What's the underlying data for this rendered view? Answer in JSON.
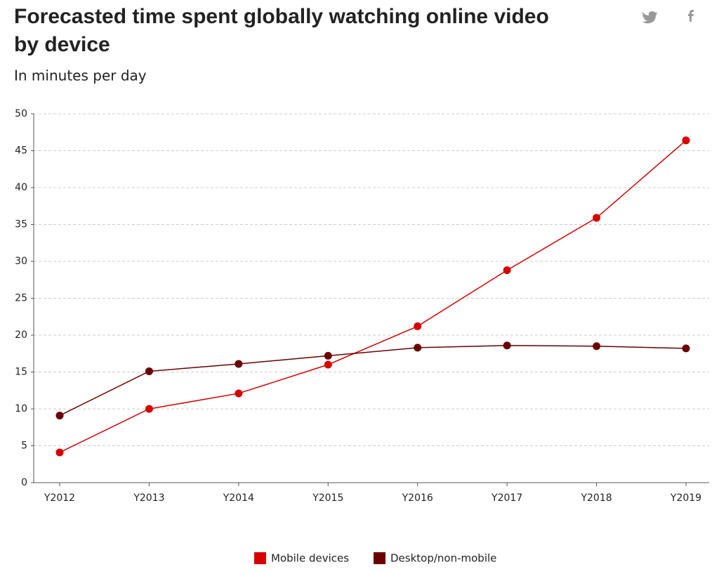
{
  "chart_data": {
    "type": "line",
    "title": "Forecasted time spent globally watching online video by device",
    "subtitle": "In minutes per day",
    "categories": [
      "Y2012",
      "Y2013",
      "Y2014",
      "Y2015",
      "Y2016",
      "Y2017",
      "Y2018",
      "Y2019"
    ],
    "series": [
      {
        "name": "Mobile devices",
        "color": "#d60000",
        "values": [
          4.1,
          10,
          12.1,
          16,
          21.2,
          28.8,
          35.9,
          46.4
        ]
      },
      {
        "name": "Desktop/non-mobile",
        "color": "#6b0000",
        "values": [
          9.1,
          15.1,
          16.1,
          17.2,
          18.3,
          18.6,
          18.5,
          18.2
        ]
      }
    ],
    "ylim": [
      0,
      50
    ],
    "yticks": [
      0,
      5,
      10,
      15,
      20,
      25,
      30,
      35,
      40,
      45,
      50
    ],
    "grid": true
  }
}
